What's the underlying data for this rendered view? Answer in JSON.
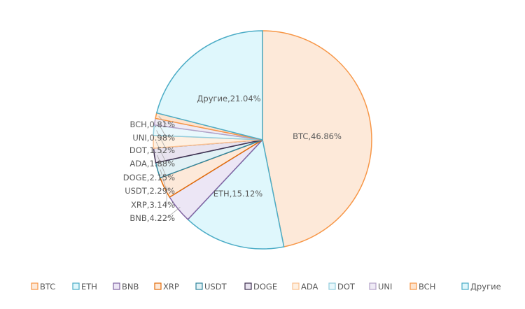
{
  "chart_data": {
    "type": "pie",
    "title": "",
    "start_angle": "top",
    "direction": "clockwise",
    "legend_position": "bottom",
    "slices": [
      {
        "label": "BTC",
        "value": 46.86,
        "data_label": "BTC,46.86%",
        "fill": "#fde9d9",
        "stroke": "#f79646"
      },
      {
        "label": "ETH",
        "value": 15.12,
        "data_label": "ETH,15.12%",
        "fill": "#dff7fc",
        "stroke": "#4bacc6"
      },
      {
        "label": "BNB",
        "value": 4.22,
        "data_label": "BNB,4.22%",
        "fill": "#ece6f5",
        "stroke": "#8064a2"
      },
      {
        "label": "XRP",
        "value": 3.14,
        "data_label": "XRP,3.14%",
        "fill": "#fde9d9",
        "stroke": "#e36c09"
      },
      {
        "label": "USDT",
        "value": 2.29,
        "data_label": "USDT,2.29%",
        "fill": "#e2f1f5",
        "stroke": "#31859c"
      },
      {
        "label": "DOGE",
        "value": 2.15,
        "data_label": "DOGE,2.15%",
        "fill": "#e8e3ef",
        "stroke": "#403151"
      },
      {
        "label": "ADA",
        "value": 1.88,
        "data_label": "ADA,1.88%",
        "fill": "#fef0e2",
        "stroke": "#fac090"
      },
      {
        "label": "DOT",
        "value": 1.52,
        "data_label": "DOT,1.52%",
        "fill": "#e9f8fc",
        "stroke": "#93cddd"
      },
      {
        "label": "UNI",
        "value": 0.98,
        "data_label": "UNI,0.98%",
        "fill": "#efebf5",
        "stroke": "#b3a2c7"
      },
      {
        "label": "BCH",
        "value": 0.81,
        "data_label": "BCH,0.81%",
        "fill": "#fde4cf",
        "stroke": "#f79646"
      },
      {
        "label": "Другие",
        "value": 21.04,
        "data_label": "Другие,21.04%",
        "fill": "#dff7fc",
        "stroke": "#4bacc6"
      }
    ]
  }
}
